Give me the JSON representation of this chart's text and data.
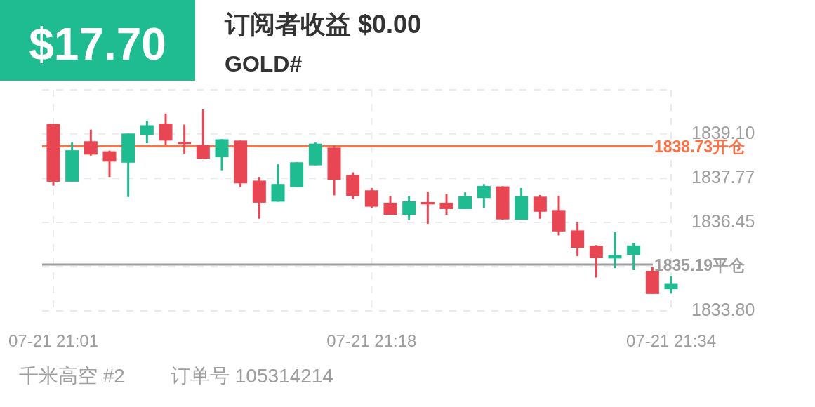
{
  "chart_data": {
    "type": "candlestick",
    "title": "订阅者收益 $0.00",
    "subtitle": "GOLD#",
    "annotations": [
      "$17.70",
      "千米高空 #2",
      "订单号 105314214"
    ],
    "categories": [
      "07-21 21:01",
      null,
      null,
      null,
      null,
      null,
      null,
      null,
      null,
      null,
      null,
      null,
      null,
      null,
      null,
      null,
      null,
      "07-21 21:18",
      null,
      null,
      null,
      null,
      null,
      null,
      null,
      null,
      null,
      null,
      null,
      null,
      null,
      null,
      null,
      "07-21 21:34"
    ],
    "ohlc": [
      [
        1839.4,
        1839.4,
        1837.55,
        1837.67
      ],
      [
        1837.67,
        1838.84,
        1837.67,
        1838.61
      ],
      [
        1838.88,
        1839.23,
        1838.45,
        1838.48
      ],
      [
        1838.58,
        1838.6,
        1837.81,
        1838.27
      ],
      [
        1838.24,
        1839.11,
        1837.21,
        1839.11
      ],
      [
        1839.07,
        1839.5,
        1838.82,
        1839.36
      ],
      [
        1839.41,
        1839.71,
        1838.76,
        1838.9
      ],
      [
        1838.86,
        1839.38,
        1838.51,
        1838.81
      ],
      [
        1838.77,
        1839.83,
        1838.34,
        1838.36
      ],
      [
        1838.4,
        1838.94,
        1838.01,
        1838.94
      ],
      [
        1838.9,
        1838.9,
        1837.51,
        1837.62
      ],
      [
        1837.7,
        1837.81,
        1836.56,
        1837.04
      ],
      [
        1837.07,
        1838.19,
        1837.07,
        1837.6
      ],
      [
        1837.51,
        1838.25,
        1837.51,
        1838.25
      ],
      [
        1838.16,
        1838.84,
        1838.16,
        1838.81
      ],
      [
        1838.69,
        1838.75,
        1837.26,
        1837.73
      ],
      [
        1837.87,
        1837.95,
        1837.14,
        1837.24
      ],
      [
        1837.41,
        1837.48,
        1836.89,
        1836.92
      ],
      [
        1837.04,
        1837.24,
        1836.68,
        1836.68
      ],
      [
        1836.68,
        1837.24,
        1836.52,
        1837.08
      ],
      [
        1837.06,
        1837.37,
        1836.41,
        1836.99
      ],
      [
        1837.04,
        1837.3,
        1836.68,
        1836.85
      ],
      [
        1836.85,
        1837.35,
        1836.85,
        1837.23
      ],
      [
        1837.18,
        1837.6,
        1836.89,
        1837.54
      ],
      [
        1837.53,
        1837.53,
        1836.53,
        1836.54
      ],
      [
        1836.53,
        1837.48,
        1836.53,
        1837.23
      ],
      [
        1837.22,
        1837.27,
        1836.56,
        1836.77
      ],
      [
        1836.82,
        1837.25,
        1836.06,
        1836.18
      ],
      [
        1836.21,
        1836.45,
        1835.44,
        1835.69
      ],
      [
        1835.75,
        1835.77,
        1834.8,
        1835.39
      ],
      [
        1835.37,
        1836.16,
        1835.08,
        1835.47
      ],
      [
        1835.48,
        1835.84,
        1835.02,
        1835.76
      ],
      [
        1835.0,
        1835.12,
        1834.31,
        1834.31
      ],
      [
        1834.45,
        1834.84,
        1834.32,
        1834.61
      ]
    ],
    "colors": [
      "#e94653",
      "#1fbc92",
      "#e94653",
      "#e94653",
      "#1fbc92",
      "#1fbc92",
      "#e94653",
      "#e94653",
      "#e94653",
      "#1fbc92",
      "#e94653",
      "#e94653",
      "#1fbc92",
      "#1fbc92",
      "#1fbc92",
      "#e94653",
      "#e94653",
      "#e94653",
      "#e94653",
      "#1fbc92",
      "#e94653",
      "#e94653",
      "#1fbc92",
      "#1fbc92",
      "#e94653",
      "#1fbc92",
      "#e94653",
      "#e94653",
      "#e94653",
      "#e94653",
      "#1fbc92",
      "#1fbc92",
      "#e94653",
      "#1fbc92"
    ],
    "ylim": [
      1833.76,
      1840.42
    ],
    "yticks": [
      {
        "value": 1833.8,
        "label": "1833.80"
      },
      {
        "value": 1835.12,
        "label": null
      },
      1836.45,
      1837.77,
      {
        "value": 1839.1,
        "label": "1839.10"
      },
      {
        "value": 1840.42,
        "label": null
      }
    ],
    "ref_lines": [
      {
        "axis": "y",
        "value": 1838.73,
        "label": "1838.73开仓",
        "color": "#ff7043"
      },
      {
        "axis": "y",
        "value": 1835.19,
        "label": "1835.19平仓",
        "color": "#9e9e9e"
      }
    ],
    "grid": true
  }
}
